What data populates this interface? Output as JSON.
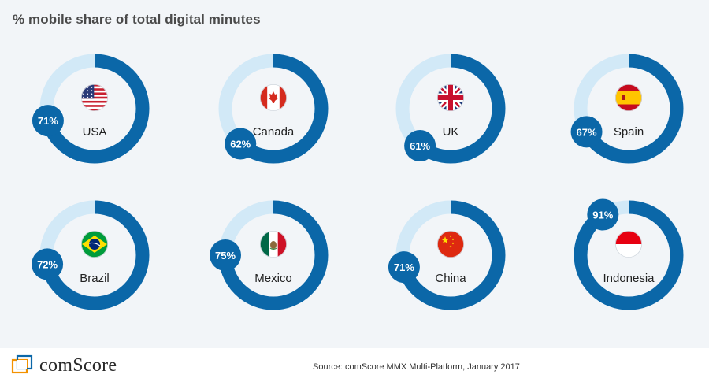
{
  "title": "%  mobile share of total digital minutes",
  "colors": {
    "background": "#f2f5f8",
    "ring_track": "#d2e9f7",
    "ring_value": "#0b67a8",
    "badge": "#0b67a8",
    "label_text": "#222222"
  },
  "chart_data": {
    "type": "donut",
    "title": "%  mobile share of total digital minutes",
    "unit": "%",
    "categories": [
      "USA",
      "Canada",
      "UK",
      "Spain",
      "Brazil",
      "Mexico",
      "China",
      "Indonesia"
    ],
    "values": [
      71,
      62,
      61,
      67,
      72,
      75,
      71,
      91
    ],
    "labels": [
      "71%",
      "62%",
      "61%",
      "67%",
      "72%",
      "75%",
      "71%",
      "91%"
    ],
    "flags": [
      "usa-flag-icon",
      "canada-flag-icon",
      "uk-flag-icon",
      "spain-flag-icon",
      "brazil-flag-icon",
      "mexico-flag-icon",
      "china-flag-icon",
      "indonesia-flag-icon"
    ]
  },
  "footer": {
    "logo_text": "comScore",
    "logo_icon": "comscore-logo-icon",
    "source": "Source: comScore MMX Multi-Platform, January 2017"
  }
}
